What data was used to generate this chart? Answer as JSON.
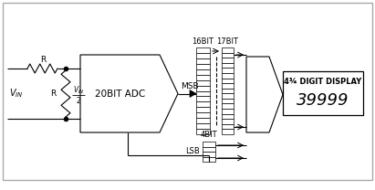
{
  "bg_color": "#ffffff",
  "border_color": "#aaaaaa",
  "line_color": "#000000",
  "display_text": "39999",
  "display_label": "4¾ DIGIT DISPLAY",
  "adc_label": "20BIT ADC",
  "msb_label": "MSB",
  "lsb_label": "LSB",
  "bit16_label": "16BIT",
  "bit17_label": "17BIT",
  "bit4_label": "4BIT"
}
